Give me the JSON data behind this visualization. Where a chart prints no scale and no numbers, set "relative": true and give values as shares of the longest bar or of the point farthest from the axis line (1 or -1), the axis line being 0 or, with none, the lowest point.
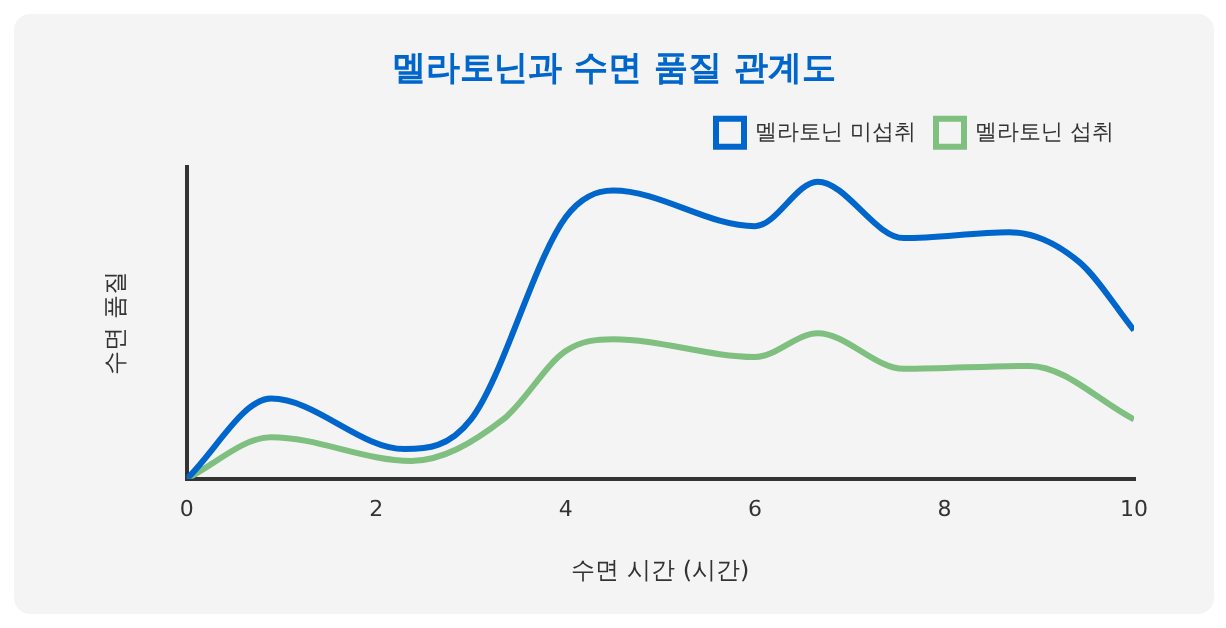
{
  "chart_data": {
    "type": "line",
    "title": "멜라토닌과 수면 품질 관계도",
    "xlabel": "수면 시간 (시간)",
    "ylabel": "수면 품질",
    "relative": true,
    "xlim": [
      0,
      10
    ],
    "xticks": [
      0,
      2,
      4,
      6,
      8,
      10
    ],
    "grid": false,
    "legend": "top right",
    "marker": "none",
    "line_style": "solid",
    "series": [
      {
        "name": "멜라토닌 미섭취",
        "color": "#0066cc",
        "x": [
          0,
          0.89,
          2.3,
          3,
          4,
          4.5,
          6,
          6.66,
          7.57,
          8.68,
          9.42,
          10
        ],
        "values": [
          0,
          0.27,
          0.1,
          0.2,
          0.88,
          0.97,
          0.85,
          1,
          0.81,
          0.83,
          0.73,
          0.5
        ]
      },
      {
        "name": "멜라토닌 섭취",
        "color": "#7fbf7f",
        "x": [
          0,
          0.89,
          2.37,
          3.34,
          4,
          4.5,
          6,
          6.66,
          7.57,
          8.9,
          10
        ],
        "values": [
          0,
          0.14,
          0.06,
          0.2,
          0.43,
          0.47,
          0.41,
          0.49,
          0.37,
          0.38,
          0.2
        ]
      }
    ]
  }
}
